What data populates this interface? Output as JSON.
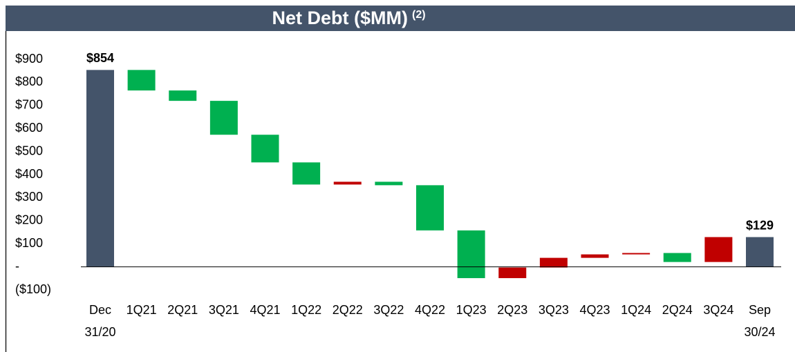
{
  "chart_data": {
    "type": "waterfall",
    "title": "Net Debt ($MM)",
    "title_superscript": "(2)",
    "categories": [
      "Dec 31/20",
      "1Q21",
      "2Q21",
      "3Q21",
      "4Q21",
      "1Q22",
      "2Q22",
      "3Q22",
      "4Q22",
      "1Q23",
      "2Q23",
      "3Q23",
      "4Q23",
      "1Q24",
      "2Q24",
      "3Q24",
      "Sep 30/24"
    ],
    "measure": [
      "total",
      "relative",
      "relative",
      "relative",
      "relative",
      "relative",
      "relative",
      "relative",
      "relative",
      "relative",
      "relative",
      "relative",
      "relative",
      "relative",
      "relative",
      "relative",
      "total"
    ],
    "values": [
      854,
      -89,
      -45,
      -147,
      -120,
      -96,
      12,
      -15,
      -196,
      -207,
      46,
      42,
      15,
      6,
      -39,
      108,
      129
    ],
    "value_labels": [
      "$854",
      null,
      null,
      null,
      null,
      null,
      null,
      null,
      null,
      null,
      null,
      null,
      null,
      null,
      null,
      null,
      "$129"
    ],
    "total_color": "#44546a",
    "increase_color": "#c00000",
    "decrease_color": "#00b050",
    "ylim": [
      -100,
      900
    ],
    "yticks": [
      {
        "value": -100,
        "label": "($100)"
      },
      {
        "value": 0,
        "label": "-"
      },
      {
        "value": 100,
        "label": "$100"
      },
      {
        "value": 200,
        "label": "$200"
      },
      {
        "value": 300,
        "label": "$300"
      },
      {
        "value": 400,
        "label": "$400"
      },
      {
        "value": 500,
        "label": "$500"
      },
      {
        "value": 600,
        "label": "$600"
      },
      {
        "value": 700,
        "label": "$700"
      },
      {
        "value": 800,
        "label": "$800"
      },
      {
        "value": 900,
        "label": "$900"
      }
    ],
    "grid": false
  }
}
